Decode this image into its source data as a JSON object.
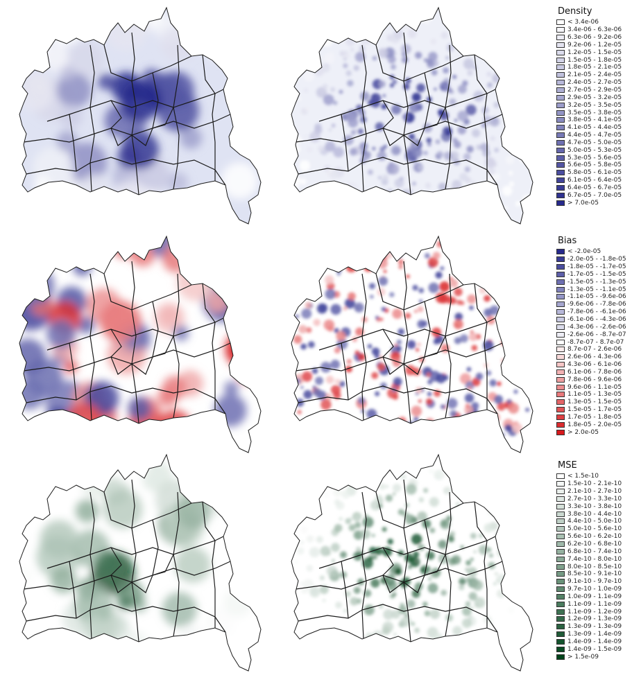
{
  "maps": [
    {
      "row": "density",
      "palette": "blue",
      "variant": "smooth"
    },
    {
      "row": "density",
      "palette": "blue",
      "variant": "detailed"
    },
    {
      "row": "bias",
      "palette": "diverging",
      "variant": "smooth"
    },
    {
      "row": "bias",
      "palette": "diverging",
      "variant": "detailed"
    },
    {
      "row": "mse",
      "palette": "green",
      "variant": "smooth"
    },
    {
      "row": "mse",
      "palette": "green",
      "variant": "detailed"
    }
  ],
  "legends": [
    {
      "id": "density",
      "title": "Density",
      "palette": "blue",
      "items": [
        "< 3.4e-06",
        "3.4e-06 - 6.3e-06",
        "6.3e-06 - 9.2e-06",
        "9.2e-06 - 1.2e-05",
        "1.2e-05 - 1.5e-05",
        "1.5e-05 - 1.8e-05",
        "1.8e-05 - 2.1e-05",
        "2.1e-05 - 2.4e-05",
        "2.4e-05 - 2.7e-05",
        "2.7e-05 - 2.9e-05",
        "2.9e-05 - 3.2e-05",
        "3.2e-05 - 3.5e-05",
        "3.5e-05 - 3.8e-05",
        "3.8e-05 - 4.1e-05",
        "4.1e-05 - 4.4e-05",
        "4.4e-05 - 4.7e-05",
        "4.7e-05 - 5.0e-05",
        "5.0e-05 - 5.3e-05",
        "5.3e-05 - 5.6e-05",
        "5.6e-05 - 5.8e-05",
        "5.8e-05 - 6.1e-05",
        "6.1e-05 - 6.4e-05",
        "6.4e-05 - 6.7e-05",
        "6.7e-05 - 7.0e-05",
        "> 7.0e-05"
      ]
    },
    {
      "id": "bias",
      "title": "Bias",
      "palette": "diverging",
      "items": [
        "< -2.0e-05",
        "-2.0e-05 - -1.8e-05",
        "-1.8e-05 - -1.7e-05",
        "-1.7e-05 - -1.5e-05",
        "-1.5e-05 - -1.3e-05",
        "-1.3e-05 - -1.1e-05",
        "-1.1e-05 - -9.6e-06",
        "-9.6e-06 - -7.8e-06",
        "-7.8e-06 - -6.1e-06",
        "-6.1e-06 - -4.3e-06",
        "-4.3e-06 - -2.6e-06",
        "-2.6e-06 - -8.7e-07",
        "-8.7e-07 - 8.7e-07",
        "8.7e-07 - 2.6e-06",
        "2.6e-06 - 4.3e-06",
        "4.3e-06 - 6.1e-06",
        "6.1e-06 - 7.8e-06",
        "7.8e-06 - 9.6e-06",
        "9.6e-06 - 1.1e-05",
        "1.1e-05 - 1.3e-05",
        "1.3e-05 - 1.5e-05",
        "1.5e-05 - 1.7e-05",
        "1.7e-05 - 1.8e-05",
        "1.8e-05 - 2.0e-05",
        "> 2.0e-05"
      ]
    },
    {
      "id": "mse",
      "title": "MSE",
      "palette": "green",
      "items": [
        "< 1.5e-10",
        "1.5e-10 - 2.1e-10",
        "2.1e-10 - 2.7e-10",
        "2.7e-10 - 3.3e-10",
        "3.3e-10 - 3.8e-10",
        "3.8e-10 - 4.4e-10",
        "4.4e-10 - 5.0e-10",
        "5.0e-10 - 5.6e-10",
        "5.6e-10 - 6.2e-10",
        "6.2e-10 - 6.8e-10",
        "6.8e-10 - 7.4e-10",
        "7.4e-10 - 8.0e-10",
        "8.0e-10 - 8.5e-10",
        "8.5e-10 - 9.1e-10",
        "9.1e-10 - 9.7e-10",
        "9.7e-10 - 1.0e-09",
        "1.0e-09 - 1.1e-09",
        "1.1e-09 - 1.1e-09",
        "1.1e-09 - 1.2e-09",
        "1.2e-09 - 1.3e-09",
        "1.3e-09 - 1.3e-09",
        "1.3e-09 - 1.4e-09",
        "1.4e-09 - 1.4e-09",
        "1.4e-09 - 1.5e-09",
        "> 1.5e-09"
      ]
    }
  ],
  "colors": {
    "outline": "#1a1a1a",
    "blue_low": "#ffffff",
    "blue_high": "#272a8c",
    "red_high": "#d7191c",
    "green_high": "#00441b"
  }
}
